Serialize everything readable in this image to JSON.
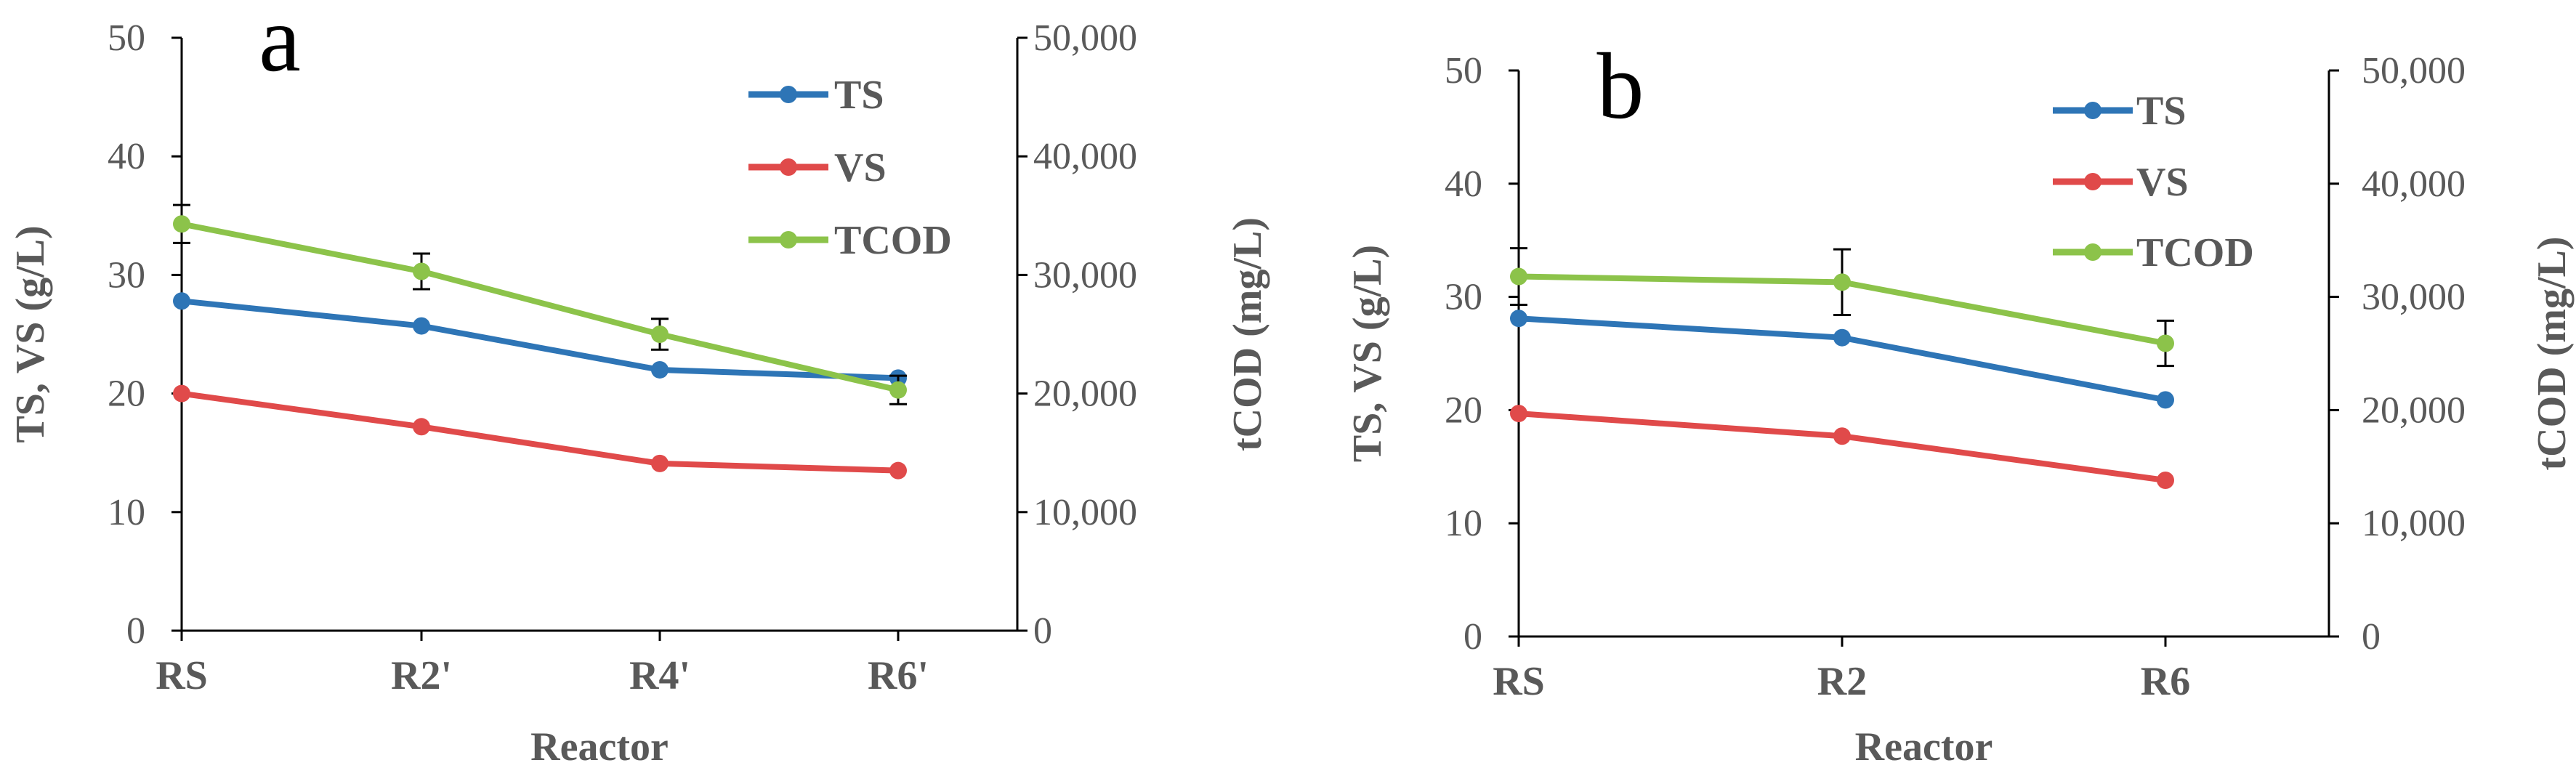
{
  "colors": {
    "ts": "#2E75B6",
    "vs": "#E04A4A",
    "tcod": "#8CC34A",
    "axis": "#000000",
    "text": "#595959"
  },
  "chart_data": [
    {
      "type": "line",
      "panel_label": "a",
      "categories": [
        "RS",
        "R2'",
        "R4'",
        "R6'"
      ],
      "xlabel": "Reactor",
      "ylabel": "TS, VS (g/L)",
      "y2label": "tCOD (mg/L)",
      "ylim": [
        0,
        50
      ],
      "y2lim": [
        0,
        50000
      ],
      "yticks": [
        "0",
        "10",
        "20",
        "30",
        "40",
        "50"
      ],
      "y2ticks": [
        "0",
        "10,000",
        "20,000",
        "30,000",
        "40,000",
        "50,000"
      ],
      "series": [
        {
          "name": "TS",
          "axis": "left",
          "color": "#2E75B6",
          "values": [
            27.8,
            25.7,
            22.0,
            21.3
          ],
          "errors": [
            0,
            0,
            0,
            0
          ]
        },
        {
          "name": "VS",
          "axis": "left",
          "color": "#E04A4A",
          "values": [
            20.0,
            17.2,
            14.1,
            13.5
          ],
          "errors": [
            0,
            0,
            0,
            0
          ]
        },
        {
          "name": "TCOD",
          "axis": "right",
          "color": "#8CC34A",
          "values": [
            34300,
            30300,
            25000,
            20300
          ],
          "errors": [
            1600,
            1500,
            1300,
            1200
          ]
        }
      ]
    },
    {
      "type": "line",
      "panel_label": "b",
      "categories": [
        "RS",
        "R2",
        "R6"
      ],
      "xlabel": "Reactor",
      "ylabel": "TS, VS (g/L)",
      "y2label": "tCOD (mg/L)",
      "ylim": [
        0,
        50
      ],
      "y2lim": [
        0,
        50000
      ],
      "yticks": [
        "0",
        "10",
        "20",
        "30",
        "40",
        "50"
      ],
      "y2ticks": [
        "0",
        "10,000",
        "20,000",
        "30,000",
        "40,000",
        "50,000"
      ],
      "series": [
        {
          "name": "TS",
          "axis": "left",
          "color": "#2E75B6",
          "values": [
            28.1,
            26.4,
            20.9
          ],
          "errors": [
            0,
            0,
            0
          ]
        },
        {
          "name": "VS",
          "axis": "left",
          "color": "#E04A4A",
          "values": [
            19.7,
            17.7,
            13.8
          ],
          "errors": [
            0,
            0,
            0
          ]
        },
        {
          "name": "TCOD",
          "axis": "right",
          "color": "#8CC34A",
          "values": [
            31800,
            31300,
            25900
          ],
          "errors": [
            2500,
            2900,
            2000
          ]
        }
      ]
    }
  ]
}
